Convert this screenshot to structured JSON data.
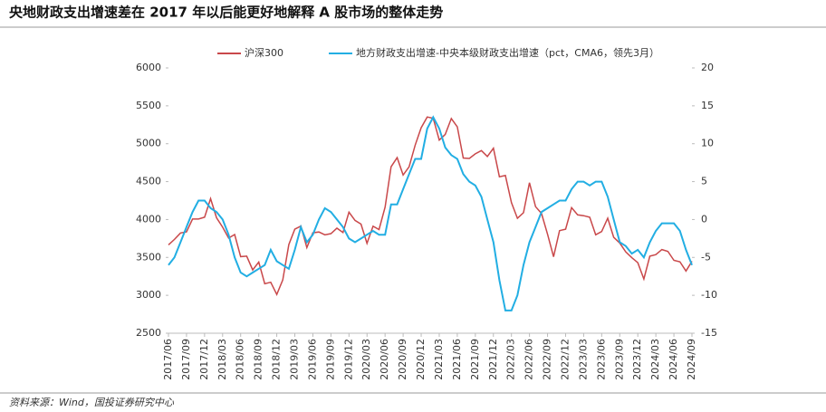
{
  "chart_data": {
    "type": "line",
    "title": "央地财政支出增速差在 2017 年以后能更好地解释 A 股市场的整体走势",
    "source": "资料来源：Wind，国投证券研究中心",
    "legend": "top",
    "categories": [
      "2017/06",
      null,
      null,
      "2017/09",
      null,
      null,
      "2017/12",
      null,
      null,
      "2018/03",
      null,
      null,
      "2018/06",
      null,
      null,
      "2018/09",
      null,
      null,
      "2018/12",
      null,
      null,
      "2019/03",
      null,
      null,
      "2019/06",
      null,
      null,
      "2019/09",
      null,
      null,
      "2019/12",
      null,
      null,
      "2020/03",
      null,
      null,
      "2020/06",
      null,
      null,
      "2020/09",
      null,
      null,
      "2020/12",
      null,
      null,
      "2021/03",
      null,
      null,
      "2021/06",
      null,
      null,
      "2021/09",
      null,
      null,
      "2021/12",
      null,
      null,
      "2022/03",
      null,
      null,
      "2022/06",
      null,
      null,
      "2022/09",
      null,
      null,
      "2022/12",
      null,
      null,
      "2023/03",
      null,
      null,
      "2023/06",
      null,
      null,
      "2023/09",
      null,
      null,
      "2023/12",
      null,
      null,
      "2024/03",
      null,
      null,
      "2024/06",
      null,
      null,
      "2024/09"
    ],
    "series": [
      {
        "name": "沪深300",
        "color": "#c9484a",
        "values": [
          3666,
          3737,
          3822,
          3837,
          4006,
          4006,
          4030,
          4275,
          4023,
          3899,
          3756,
          3802,
          3510,
          3517,
          3335,
          3439,
          3153,
          3173,
          3011,
          3202,
          3670,
          3872,
          3913,
          3630,
          3825,
          3836,
          3799,
          3814,
          3886,
          3828,
          4097,
          3988,
          3940,
          3686,
          3912,
          3868,
          4164,
          4695,
          4816,
          4587,
          4695,
          4981,
          5211,
          5352,
          5336,
          5048,
          5123,
          5332,
          5224,
          4811,
          4806,
          4866,
          4909,
          4832,
          4940,
          4564,
          4581,
          4223,
          4016,
          4090,
          4485,
          4170,
          4079,
          3804,
          3508,
          3853,
          3872,
          4157,
          4061,
          4051,
          4030,
          3799,
          3842,
          4017,
          3765,
          3690,
          3573,
          3496,
          3431,
          3216,
          3516,
          3537,
          3604,
          3580,
          3462,
          3442,
          3321,
          3450
        ]
      },
      {
        "name": "地方财政支出增速-中央本级财政支出增速（pct，CMA6，领先3月）",
        "color": "#22aee3",
        "axis": "y2",
        "values": [
          -6,
          -5,
          -3,
          -1,
          1,
          2.5,
          2.5,
          1.5,
          1,
          0,
          -2,
          -5,
          -7,
          -7.5,
          -7,
          -6.5,
          -6,
          -4,
          -5.5,
          -6,
          -6.5,
          -4,
          -1,
          -3,
          -2,
          0,
          1.5,
          1,
          0,
          -1,
          -2.5,
          -3,
          -2.5,
          -2,
          -1.5,
          -2,
          -2,
          2,
          2,
          4,
          6,
          8,
          8,
          12,
          13.5,
          12,
          9.5,
          8.5,
          8,
          6,
          5,
          4.5,
          3,
          0,
          -3,
          -8,
          -12,
          -12,
          -10,
          -6,
          -3,
          -1,
          1,
          1.5,
          2,
          2.5,
          2.5,
          4,
          5,
          5,
          4.5,
          5,
          5,
          3,
          0,
          -3,
          -3.5,
          -4.5,
          -4,
          -5,
          -3,
          -1.5,
          -0.5,
          -0.5,
          -0.5,
          -1.5,
          -4,
          -6
        ]
      }
    ],
    "ylim": [
      2500,
      6000
    ],
    "yticks": [
      2500,
      3000,
      3500,
      4000,
      4500,
      5000,
      5500,
      6000
    ],
    "y2lim": [
      -15,
      20
    ],
    "y2ticks": [
      -15,
      -10,
      -5,
      0,
      5,
      10,
      15,
      20
    ]
  }
}
